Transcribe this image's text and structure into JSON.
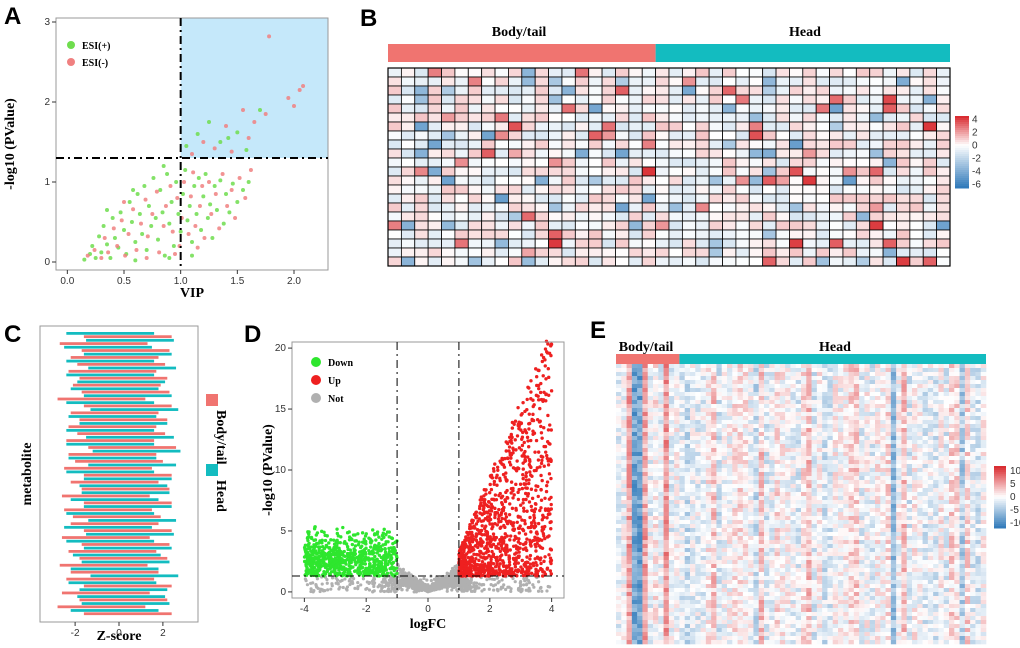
{
  "colors": {
    "esi_pos": "#6fdd4e",
    "esi_neg": "#f08080",
    "down": "#2ee62e",
    "up": "#ee2020",
    "not": "#b0b0b0",
    "body_tail": "#f07470",
    "head": "#13bcc0",
    "highlight": "#c5e8fa",
    "heat_low": "#2d78b9",
    "heat_mid": "#ffffff",
    "heat_high": "#d8262b"
  },
  "panels": {
    "a": "A",
    "b": "B",
    "c": "C",
    "d": "D",
    "e": "E"
  },
  "chart_data": [
    {
      "id": "A",
      "type": "scatter",
      "xlabel": "VIP",
      "ylabel": "-log10 (PValue)",
      "xlim": [
        -0.1,
        2.3
      ],
      "ylim": [
        -0.1,
        3.05
      ],
      "xticks": [
        "0.0",
        "0.5",
        "1.0",
        "1.5",
        "2.0"
      ],
      "yticks": [
        "0",
        "1",
        "2",
        "3"
      ],
      "thresholds": {
        "x": 1.0,
        "y": 1.3
      },
      "legend_position": "top-left",
      "series": [
        {
          "name": "ESI(+)",
          "color": "esi_pos",
          "points": [
            [
              0.15,
              0.03
            ],
            [
              0.2,
              0.1
            ],
            [
              0.22,
              0.2
            ],
            [
              0.25,
              0.05
            ],
            [
              0.28,
              0.32
            ],
            [
              0.3,
              0.12
            ],
            [
              0.32,
              0.45
            ],
            [
              0.35,
              0.22
            ],
            [
              0.38,
              0.05
            ],
            [
              0.4,
              0.55
            ],
            [
              0.42,
              0.3
            ],
            [
              0.45,
              0.18
            ],
            [
              0.47,
              0.62
            ],
            [
              0.5,
              0.4
            ],
            [
              0.52,
              0.1
            ],
            [
              0.55,
              0.75
            ],
            [
              0.57,
              0.5
            ],
            [
              0.6,
              0.25
            ],
            [
              0.62,
              0.85
            ],
            [
              0.64,
              0.6
            ],
            [
              0.66,
              0.35
            ],
            [
              0.68,
              0.95
            ],
            [
              0.7,
              0.15
            ],
            [
              0.72,
              0.7
            ],
            [
              0.74,
              0.45
            ],
            [
              0.76,
              1.05
            ],
            [
              0.78,
              0.55
            ],
            [
              0.8,
              0.28
            ],
            [
              0.82,
              0.9
            ],
            [
              0.84,
              0.62
            ],
            [
              0.86,
              0.08
            ],
            [
              0.88,
              1.1
            ],
            [
              0.9,
              0.48
            ],
            [
              0.92,
              0.75
            ],
            [
              0.94,
              0.2
            ],
            [
              0.96,
              1.0
            ],
            [
              0.98,
              0.6
            ],
            [
              1.0,
              0.38
            ],
            [
              1.02,
              0.85
            ],
            [
              1.04,
              1.15
            ],
            [
              1.06,
              0.52
            ],
            [
              1.08,
              0.7
            ],
            [
              1.1,
              0.25
            ],
            [
              1.12,
              0.95
            ],
            [
              1.14,
              0.6
            ],
            [
              1.16,
              1.05
            ],
            [
              1.18,
              0.4
            ],
            [
              1.2,
              0.82
            ],
            [
              1.22,
              1.1
            ],
            [
              1.24,
              0.55
            ],
            [
              1.26,
              0.72
            ],
            [
              1.28,
              0.3
            ],
            [
              1.3,
              0.95
            ],
            [
              1.32,
              0.65
            ],
            [
              1.35,
              1.02
            ],
            [
              1.38,
              0.48
            ],
            [
              1.4,
              0.85
            ],
            [
              1.43,
              0.62
            ],
            [
              1.46,
              0.98
            ],
            [
              1.5,
              0.75
            ],
            [
              1.55,
              0.9
            ],
            [
              1.6,
              1.0
            ],
            [
              1.05,
              1.45
            ],
            [
              1.15,
              1.6
            ],
            [
              1.25,
              1.75
            ],
            [
              1.35,
              1.5
            ],
            [
              1.5,
              1.62
            ],
            [
              1.7,
              1.9
            ],
            [
              1.58,
              1.4
            ],
            [
              1.42,
              1.55
            ],
            [
              0.6,
              0.02
            ],
            [
              0.9,
              0.05
            ],
            [
              1.1,
              0.08
            ],
            [
              0.35,
              0.65
            ],
            [
              0.58,
              0.9
            ],
            [
              0.85,
              1.2
            ]
          ]
        },
        {
          "name": "ESI(-)",
          "color": "esi_neg",
          "points": [
            [
              0.18,
              0.08
            ],
            [
              0.24,
              0.15
            ],
            [
              0.3,
              0.05
            ],
            [
              0.33,
              0.3
            ],
            [
              0.36,
              0.12
            ],
            [
              0.41,
              0.42
            ],
            [
              0.44,
              0.2
            ],
            [
              0.48,
              0.52
            ],
            [
              0.51,
              0.08
            ],
            [
              0.54,
              0.35
            ],
            [
              0.58,
              0.66
            ],
            [
              0.61,
              0.15
            ],
            [
              0.65,
              0.48
            ],
            [
              0.69,
              0.78
            ],
            [
              0.71,
              0.32
            ],
            [
              0.75,
              0.6
            ],
            [
              0.79,
              0.88
            ],
            [
              0.81,
              0.12
            ],
            [
              0.85,
              0.45
            ],
            [
              0.87,
              0.7
            ],
            [
              0.91,
              0.95
            ],
            [
              0.93,
              0.38
            ],
            [
              0.97,
              0.8
            ],
            [
              0.99,
              0.2
            ],
            [
              1.01,
              0.55
            ],
            [
              1.03,
              1.0
            ],
            [
              1.07,
              0.35
            ],
            [
              1.09,
              0.82
            ],
            [
              1.11,
              1.12
            ],
            [
              1.13,
              0.45
            ],
            [
              1.17,
              0.7
            ],
            [
              1.19,
              0.95
            ],
            [
              1.21,
              0.3
            ],
            [
              1.25,
              1.0
            ],
            [
              1.27,
              0.6
            ],
            [
              1.31,
              0.85
            ],
            [
              1.34,
              0.42
            ],
            [
              1.37,
              1.1
            ],
            [
              1.41,
              0.7
            ],
            [
              1.45,
              0.9
            ],
            [
              1.48,
              0.55
            ],
            [
              1.52,
              1.05
            ],
            [
              1.57,
              0.8
            ],
            [
              1.62,
              1.15
            ],
            [
              1.1,
              1.35
            ],
            [
              1.2,
              1.5
            ],
            [
              1.3,
              1.42
            ],
            [
              1.4,
              1.7
            ],
            [
              1.45,
              1.38
            ],
            [
              1.55,
              1.9
            ],
            [
              1.65,
              1.75
            ],
            [
              1.75,
              1.85
            ],
            [
              1.95,
              2.05
            ],
            [
              2.0,
              1.95
            ],
            [
              2.05,
              2.15
            ],
            [
              2.08,
              2.2
            ],
            [
              1.78,
              2.82
            ],
            [
              1.6,
              1.55
            ],
            [
              0.7,
              0.05
            ],
            [
              0.95,
              0.1
            ],
            [
              1.15,
              0.18
            ],
            [
              0.5,
              0.75
            ]
          ]
        }
      ]
    },
    {
      "id": "B",
      "type": "heatmap",
      "groups": [
        {
          "name": "Body/tail",
          "n": 20
        },
        {
          "name": "Head",
          "n": 22
        }
      ],
      "rows": 22,
      "cols": 42,
      "scale_ticks": [
        "4",
        "2",
        "0",
        "-2",
        "-4",
        "-6"
      ],
      "scale_range": [
        -6.5,
        4.5
      ]
    },
    {
      "id": "C",
      "type": "bar",
      "orientation": "horizontal",
      "xlabel": "Z-score",
      "ylabel": "metabolite",
      "xlim": [
        -3.6,
        3.6
      ],
      "xticks": [
        "-2",
        "0",
        "2"
      ],
      "legend_position": "right",
      "series": [
        {
          "name": "Body/tail",
          "color": "body_tail",
          "values": [
            -2.0,
            -2.4,
            -2.1,
            -1.9,
            -2.3,
            -2.0,
            -2.2,
            -1.8,
            -2.1,
            -2.5,
            -2.0,
            -1.9,
            -2.2,
            -2.0,
            -2.3,
            -2.1,
            -1.8,
            -2.0,
            -2.4,
            -2.2,
            -2.0,
            -1.9,
            -2.1,
            -2.3,
            -2.0,
            -2.2,
            -2.5,
            -1.9,
            -2.0,
            -2.3,
            -2.1,
            -2.0,
            -2.2,
            -2.4,
            -2.6,
            -2.1,
            -2.0,
            -2.3,
            -2.2,
            -2.5,
            -2.0
          ]
        },
        {
          "name": "Head",
          "color": "head",
          "values": [
            2.0,
            2.2,
            1.9,
            2.1,
            2.0,
            2.3,
            2.0,
            1.8,
            2.2,
            2.1,
            2.0,
            2.4,
            2.1,
            1.9,
            2.0,
            2.2,
            2.0,
            2.5,
            2.1,
            2.3,
            2.0,
            2.1,
            2.6,
            2.0,
            2.2,
            2.1,
            2.0,
            2.3,
            1.9,
            2.2,
            2.0,
            2.1,
            2.3,
            2.0,
            2.2,
            2.4,
            2.1,
            1.9,
            2.5,
            2.0,
            2.2
          ]
        }
      ]
    },
    {
      "id": "D",
      "type": "scatter",
      "subtype": "volcano",
      "xlabel": "logFC",
      "ylabel": "-log10 (PValue)",
      "xlim": [
        -4.4,
        4.4
      ],
      "ylim": [
        -0.5,
        20.5
      ],
      "xticks": [
        "-4",
        "-2",
        "0",
        "2",
        "4"
      ],
      "yticks": [
        "0",
        "5",
        "10",
        "15",
        "20"
      ],
      "thresholds": {
        "x": [
          -1,
          1
        ],
        "y": 1.3
      },
      "legend_position": "top-left",
      "series": [
        {
          "name": "Down",
          "color": "down",
          "x_range": [
            -4.0,
            -1.0
          ],
          "y_max": 5.5
        },
        {
          "name": "Up",
          "color": "up",
          "x_range": [
            1.0,
            4.0
          ],
          "y_max": 19.5
        },
        {
          "name": "Not",
          "color": "not",
          "x_range": [
            -4.0,
            4.0
          ],
          "y_max": 2.5
        }
      ]
    },
    {
      "id": "E",
      "type": "heatmap",
      "groups": [
        {
          "name": "Body/tail",
          "n": 12
        },
        {
          "name": "Head",
          "n": 58
        }
      ],
      "scale_ticks": [
        "10",
        "5",
        "0",
        "-5",
        "-10"
      ],
      "scale_range": [
        -12,
        12
      ]
    }
  ]
}
